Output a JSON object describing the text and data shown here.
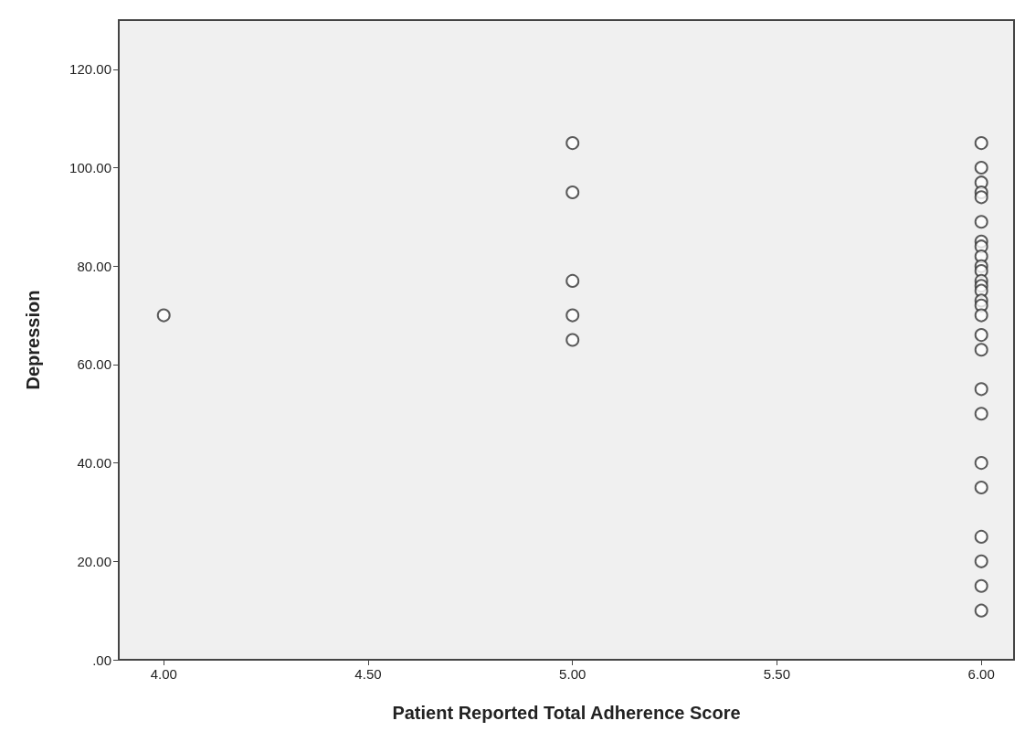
{
  "chart_data": {
    "type": "scatter",
    "xlabel": "Patient Reported Total Adherence Score",
    "ylabel": "Depression",
    "x": [
      4,
      5,
      5,
      5,
      5,
      5,
      6,
      6,
      6,
      6,
      6,
      6,
      6,
      6,
      6,
      6,
      6,
      6,
      6,
      6,
      6,
      6,
      6,
      6,
      6,
      6,
      6,
      6,
      6,
      6,
      6,
      6,
      6
    ],
    "values": [
      70,
      105,
      95,
      77,
      70,
      65,
      105,
      100,
      97,
      95,
      94,
      89,
      85,
      84,
      82,
      80,
      79,
      77,
      76,
      75,
      73,
      72,
      70,
      66,
      63,
      55,
      50,
      40,
      35,
      25,
      20,
      15,
      10
    ],
    "color": "#333333",
    "marker": "circle",
    "grid": false,
    "xlim": [
      3.89,
      6.08
    ],
    "xticks": [
      {
        "value": 4,
        "label": "4.00"
      },
      {
        "value": 4.5,
        "label": "4.50"
      },
      {
        "value": 5,
        "label": "5.00"
      },
      {
        "value": 5.5,
        "label": "5.50"
      },
      {
        "value": 6,
        "label": "6.00"
      }
    ],
    "ylim": [
      0,
      130
    ],
    "yticks": [
      {
        "value": 0,
        "label": ".00"
      },
      {
        "value": 20,
        "label": "20.00"
      },
      {
        "value": 40,
        "label": "40.00"
      },
      {
        "value": 60,
        "label": "60.00"
      },
      {
        "value": 80,
        "label": "80.00"
      },
      {
        "value": 100,
        "label": "100.00"
      },
      {
        "value": 120,
        "label": "120.00"
      }
    ]
  }
}
